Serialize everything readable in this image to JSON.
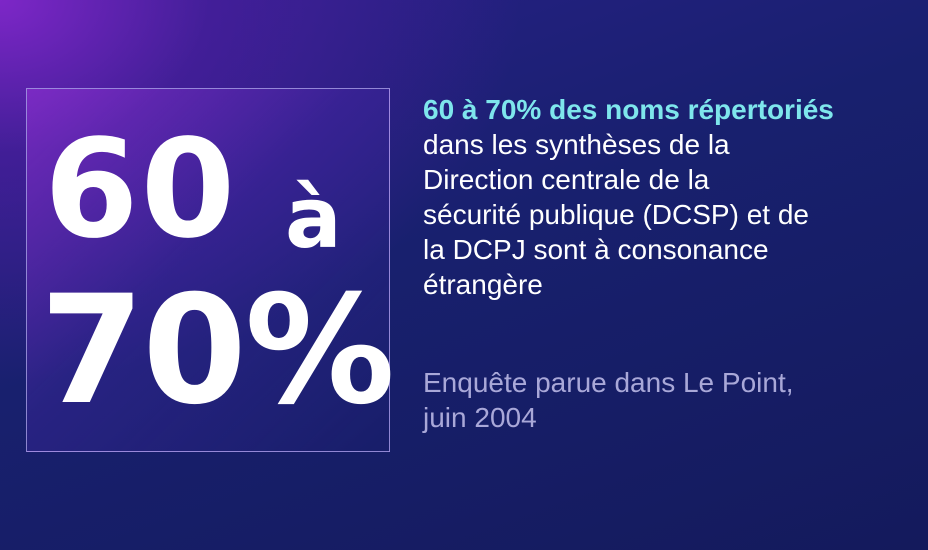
{
  "stat": {
    "number_top": "60",
    "connector": "à",
    "number_bottom": "70%"
  },
  "statement": {
    "headline": "60 à 70% des noms répertoriés",
    "lines": [
      "dans les synthèses  de la",
      "Direction centrale de la",
      "sécurité publique (DCSP) et de",
      "la DCPJ sont à consonance",
      "étrangère"
    ]
  },
  "source": {
    "lines": [
      "Enquête parue dans Le Point,",
      "juin 2004"
    ]
  },
  "colors": {
    "headline_accent": "#7ee6ec",
    "source_text": "#a9a8d8",
    "background_dark": "#141a5c",
    "background_glow": "#8c28d2"
  }
}
